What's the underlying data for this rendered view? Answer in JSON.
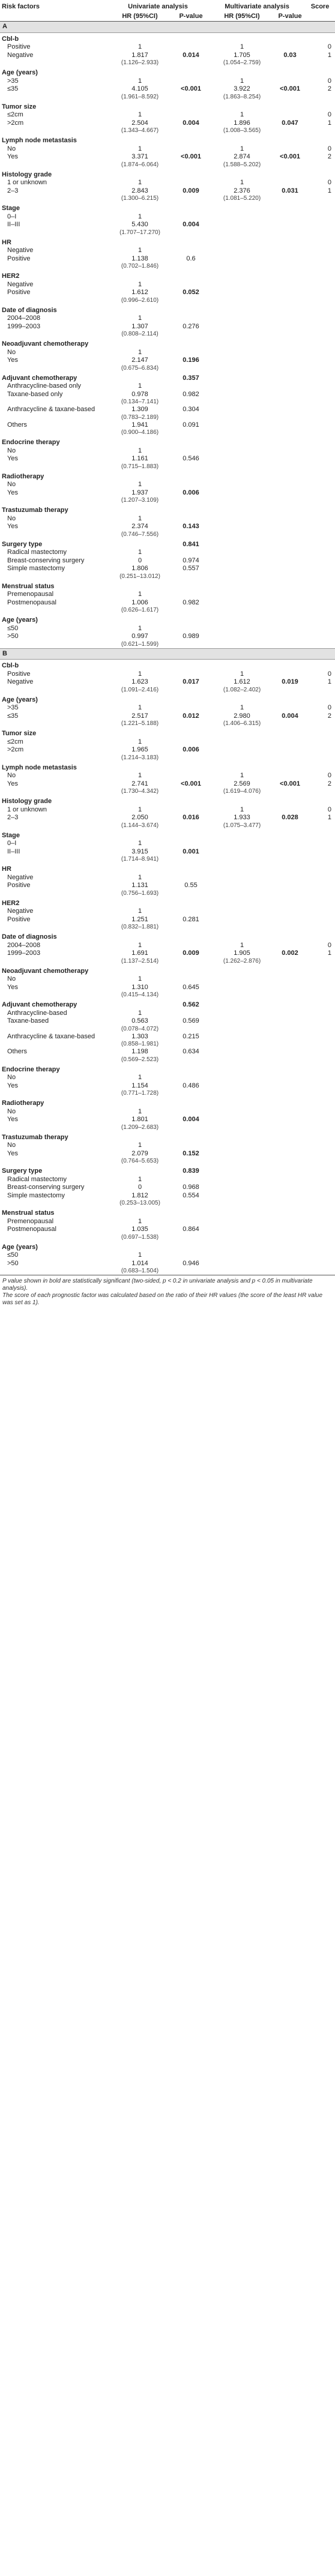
{
  "header": {
    "col_factor": "Risk factors",
    "col_uni": "Univariate analysis",
    "col_multi": "Multivariate analysis",
    "col_score": "Score",
    "col_hr1": "HR (95%CI)",
    "col_p1": "P-value",
    "col_hr2": "HR (95%CI)",
    "col_p2": "P-value"
  },
  "sections": [
    {
      "label": "A",
      "factors": [
        {
          "name": "Cbl-b",
          "levels": [
            {
              "label": "Positive",
              "hr1": "1",
              "p1": "",
              "hr2": "1",
              "p2": "",
              "score": "0"
            },
            {
              "label": "Negative",
              "hr1": "1.817",
              "ci1": "(1.126–2.933)",
              "p1": "0.014",
              "p1b": true,
              "hr2": "1.705",
              "ci2": "(1.054–2.759)",
              "p2": "0.03",
              "p2b": true,
              "score": "1"
            }
          ]
        },
        {
          "name": "Age (years)",
          "levels": [
            {
              "label": ">35",
              "hr1": "1",
              "hr2": "1",
              "score": "0"
            },
            {
              "label": "≤35",
              "hr1": "4.105",
              "ci1": "(1.961–8.592)",
              "p1": "<0.001",
              "p1b": true,
              "hr2": "3.922",
              "ci2": "(1.863–8.254)",
              "p2": "<0.001",
              "p2b": true,
              "score": "2"
            }
          ]
        },
        {
          "name": "Tumor size",
          "levels": [
            {
              "label": "≤2cm",
              "hr1": "1",
              "hr2": "1",
              "score": "0"
            },
            {
              "label": ">2cm",
              "hr1": "2.504",
              "ci1": "(1.343–4.667)",
              "p1": "0.004",
              "p1b": true,
              "hr2": "1.896",
              "ci2": "(1.008–3.565)",
              "p2": "0.047",
              "p2b": true,
              "score": "1"
            }
          ]
        },
        {
          "name": "Lymph node metastasis",
          "levels": [
            {
              "label": "No",
              "hr1": "1",
              "hr2": "1",
              "score": "0"
            },
            {
              "label": "Yes",
              "hr1": "3.371",
              "ci1": "(1.874–6.064)",
              "p1": "<0.001",
              "p1b": true,
              "hr2": "2.874",
              "ci2": "(1.588–5.202)",
              "p2": "<0.001",
              "p2b": true,
              "score": "2"
            }
          ]
        },
        {
          "name": "Histology grade",
          "levels": [
            {
              "label": "1 or unknown",
              "hr1": "1",
              "hr2": "1",
              "score": "0"
            },
            {
              "label": "2–3",
              "hr1": "2.843",
              "ci1": "(1.300–6.215)",
              "p1": "0.009",
              "p1b": true,
              "hr2": "2.376",
              "ci2": "(1.081–5.220)",
              "p2": "0.031",
              "p2b": true,
              "score": "1"
            }
          ]
        },
        {
          "name": "Stage",
          "levels": [
            {
              "label": "0–I",
              "hr1": "1"
            },
            {
              "label": "II–III",
              "hr1": "5.430",
              "ci1": "(1.707–17.270)",
              "p1": "0.004",
              "p1b": true
            }
          ]
        },
        {
          "name": "HR",
          "levels": [
            {
              "label": "Negative",
              "hr1": "1"
            },
            {
              "label": "Positive",
              "hr1": "1.138",
              "ci1": "(0.702–1.846)",
              "p1": "0.6"
            }
          ]
        },
        {
          "name": "HER2",
          "levels": [
            {
              "label": "Negative",
              "hr1": "1"
            },
            {
              "label": "Positive",
              "hr1": "1.612",
              "ci1": "(0.996–2.610)",
              "p1": "0.052",
              "p1b": true
            }
          ]
        },
        {
          "name": "Date of diagnosis",
          "levels": [
            {
              "label": "2004–2008",
              "hr1": "1"
            },
            {
              "label": "1999–2003",
              "hr1": "1.307",
              "ci1": "(0.808–2.114)",
              "p1": "0.276"
            }
          ]
        },
        {
          "name": "Neoadjuvant chemotherapy",
          "levels": [
            {
              "label": "No",
              "hr1": "1"
            },
            {
              "label": "Yes",
              "hr1": "2.147",
              "ci1": "(0.675–6.834)",
              "p1": "0.196",
              "p1b": true
            }
          ]
        },
        {
          "name": "Adjuvant chemotherapy",
          "p1": "0.357",
          "levels": [
            {
              "label": "Anthracycline-based only",
              "hr1": "1"
            },
            {
              "label": "Taxane-based only",
              "hr1": "0.978",
              "ci1": "(0.134–7.141)",
              "p1": "0.982"
            },
            {
              "label": "Anthracycline & taxane-based",
              "hr1": "1.309",
              "ci1": "(0.783–2.189)",
              "p1": "0.304"
            },
            {
              "label": "Others",
              "hr1": "1.941",
              "ci1": "(0.900–4.186)",
              "p1": "0.091"
            }
          ]
        },
        {
          "name": "Endocrine therapy",
          "levels": [
            {
              "label": "No",
              "hr1": "1"
            },
            {
              "label": "Yes",
              "hr1": "1.161",
              "ci1": "(0.715–1.883)",
              "p1": "0.546"
            }
          ]
        },
        {
          "name": "Radiotherapy",
          "levels": [
            {
              "label": "No",
              "hr1": "1"
            },
            {
              "label": "Yes",
              "hr1": "1.937",
              "ci1": "(1.207–3.109)",
              "p1": "0.006",
              "p1b": true
            }
          ]
        },
        {
          "name": "Trastuzumab therapy",
          "levels": [
            {
              "label": "No",
              "hr1": "1"
            },
            {
              "label": "Yes",
              "hr1": "2.374",
              "ci1": "(0.746–7.556)",
              "p1": "0.143",
              "p1b": true
            }
          ]
        },
        {
          "name": "Surgery type",
          "p1": "0.841",
          "levels": [
            {
              "label": "Radical mastectomy",
              "hr1": "1"
            },
            {
              "label": "Breast-conserving surgery",
              "hr1": "0",
              "p1": "0.974"
            },
            {
              "label": "Simple mastectomy",
              "hr1": "1.806",
              "ci1": "(0.251–13.012)",
              "p1": "0.557"
            }
          ]
        },
        {
          "name": "Menstrual status",
          "levels": [
            {
              "label": "Premenopausal",
              "hr1": "1"
            },
            {
              "label": "Postmenopausal",
              "hr1": "1.006",
              "ci1": "(0.626–1.617)",
              "p1": "0.982"
            }
          ]
        },
        {
          "name": "Age (years)",
          "levels": [
            {
              "label": "≤50",
              "hr1": "1"
            },
            {
              "label": ">50",
              "hr1": "0.997",
              "ci1": "(0.621–1.599)",
              "p1": "0.989"
            }
          ]
        }
      ]
    },
    {
      "label": "B",
      "factors": [
        {
          "name": "Cbl-b",
          "levels": [
            {
              "label": "Positive",
              "hr1": "1",
              "hr2": "1",
              "score": "0"
            },
            {
              "label": "Negative",
              "hr1": "1.623",
              "ci1": "(1.091–2.416)",
              "p1": "0.017",
              "p1b": true,
              "hr2": "1.612",
              "ci2": "(1.082–2.402)",
              "p2": "0.019",
              "p2b": true,
              "score": "1"
            }
          ]
        },
        {
          "name": "Age (years)",
          "levels": [
            {
              "label": ">35",
              "hr1": "1",
              "hr2": "1",
              "score": "0"
            },
            {
              "label": "≤35",
              "hr1": "2.517",
              "ci1": "(1.221–5.188)",
              "p1": "0.012",
              "p1b": true,
              "hr2": "2.980",
              "ci2": "(1.406–6.315)",
              "p2": "0.004",
              "p2b": true,
              "score": "2"
            }
          ]
        },
        {
          "name": "Tumor size",
          "levels": [
            {
              "label": "≤2cm",
              "hr1": "1"
            },
            {
              "label": ">2cm",
              "hr1": "1.965",
              "ci1": "(1.214–3.183)",
              "p1": "0.006",
              "p1b": true
            }
          ]
        },
        {
          "name": "Lymph node metastasis",
          "levels": [
            {
              "label": "No",
              "hr1": "1",
              "hr2": "1",
              "score": "0"
            },
            {
              "label": "Yes",
              "hr1": "2.741",
              "ci1": "(1.730–4.342)",
              "p1": "<0.001",
              "p1b": true,
              "hr2": "2.569",
              "ci2": "(1.619–4.076)",
              "p2": "<0.001",
              "p2b": true,
              "score": "2"
            }
          ]
        },
        {
          "name": "Histology grade",
          "levels": [
            {
              "label": "1 or unknown",
              "hr1": "1",
              "hr2": "1",
              "score": "0"
            },
            {
              "label": "2–3",
              "hr1": "2.050",
              "ci1": "(1.144–3.674)",
              "p1": "0.016",
              "p1b": true,
              "hr2": "1.933",
              "ci2": "(1.075–3.477)",
              "p2": "0.028",
              "p2b": true,
              "score": "1"
            }
          ]
        },
        {
          "name": "Stage",
          "levels": [
            {
              "label": "0–I",
              "hr1": "1"
            },
            {
              "label": "II–III",
              "hr1": "3.915",
              "ci1": "(1.714–8.941)",
              "p1": "0.001",
              "p1b": true
            }
          ]
        },
        {
          "name": "HR",
          "levels": [
            {
              "label": "Negative",
              "hr1": "1"
            },
            {
              "label": "Positive",
              "hr1": "1.131",
              "ci1": "(0.756–1.693)",
              "p1": "0.55"
            }
          ]
        },
        {
          "name": "HER2",
          "levels": [
            {
              "label": "Negative",
              "hr1": "1"
            },
            {
              "label": "Positive",
              "hr1": "1.251",
              "ci1": "(0.832–1.881)",
              "p1": "0.281"
            }
          ]
        },
        {
          "name": "Date of diagnosis",
          "levels": [
            {
              "label": "2004–2008",
              "hr1": "1",
              "hr2": "1",
              "score": "0"
            },
            {
              "label": "1999–2003",
              "hr1": "1.691",
              "ci1": "(1.137–2.514)",
              "p1": "0.009",
              "p1b": true,
              "hr2": "1.905",
              "ci2": "(1.262–2.876)",
              "p2": "0.002",
              "p2b": true,
              "score": "1"
            }
          ]
        },
        {
          "name": "Neoadjuvant chemotherapy",
          "levels": [
            {
              "label": "No",
              "hr1": "1"
            },
            {
              "label": "Yes",
              "hr1": "1.310",
              "ci1": "(0.415–4.134)",
              "p1": "0.645"
            }
          ]
        },
        {
          "name": "Adjuvant chemotherapy",
          "p1": "0.562",
          "levels": [
            {
              "label": "Anthracycline-based",
              "hr1": "1"
            },
            {
              "label": "Taxane-based",
              "hr1": "0.563",
              "ci1": "(0.078–4.072)",
              "p1": "0.569"
            },
            {
              "label": "Anthracycline & taxane-based",
              "hr1": "1.303",
              "ci1": "(0.858–1.981)",
              "p1": "0.215"
            },
            {
              "label": "Others",
              "hr1": "1.198",
              "ci1": "(0.569–2.523)",
              "p1": "0.634"
            }
          ]
        },
        {
          "name": "Endocrine therapy",
          "levels": [
            {
              "label": "No",
              "hr1": "1"
            },
            {
              "label": "Yes",
              "hr1": "1.154",
              "ci1": "(0.771–1.728)",
              "p1": "0.486"
            }
          ]
        },
        {
          "name": "Radiotherapy",
          "levels": [
            {
              "label": "No",
              "hr1": "1"
            },
            {
              "label": "Yes",
              "hr1": "1.801",
              "ci1": "(1.209–2.683)",
              "p1": "0.004",
              "p1b": true
            }
          ]
        },
        {
          "name": "Trastuzumab therapy",
          "levels": [
            {
              "label": "No",
              "hr1": "1"
            },
            {
              "label": "Yes",
              "hr1": "2.079",
              "ci1": "(0.764–5.653)",
              "p1": "0.152",
              "p1b": true
            }
          ]
        },
        {
          "name": "Surgery type",
          "p1": "0.839",
          "levels": [
            {
              "label": "Radical mastectomy",
              "hr1": "1"
            },
            {
              "label": "Breast-conserving surgery",
              "hr1": "0",
              "p1": "0.968"
            },
            {
              "label": "Simple mastectomy",
              "hr1": "1.812",
              "ci1": "(0.253–13.005)",
              "p1": "0.554"
            }
          ]
        },
        {
          "name": "Menstrual status",
          "levels": [
            {
              "label": "Premenopausal",
              "hr1": "1"
            },
            {
              "label": "Postmenopausal",
              "hr1": "1.035",
              "ci1": "(0.697–1.538)",
              "p1": "0.864"
            }
          ]
        },
        {
          "name": "Age (years)",
          "levels": [
            {
              "label": "≤50",
              "hr1": "1"
            },
            {
              "label": ">50",
              "hr1": "1.014",
              "ci1": "(0.683–1.504)",
              "p1": "0.946"
            }
          ]
        }
      ]
    }
  ],
  "footnote": {
    "line1": "P value shown in bold are statistically significant (two-sided, p < 0.2 in univariate analysis and p < 0.05 in multivariate analysis).",
    "line2": "The score of each prognostic factor was calculated based on the ratio of their HR values (the score of the least HR value was set as 1)."
  }
}
